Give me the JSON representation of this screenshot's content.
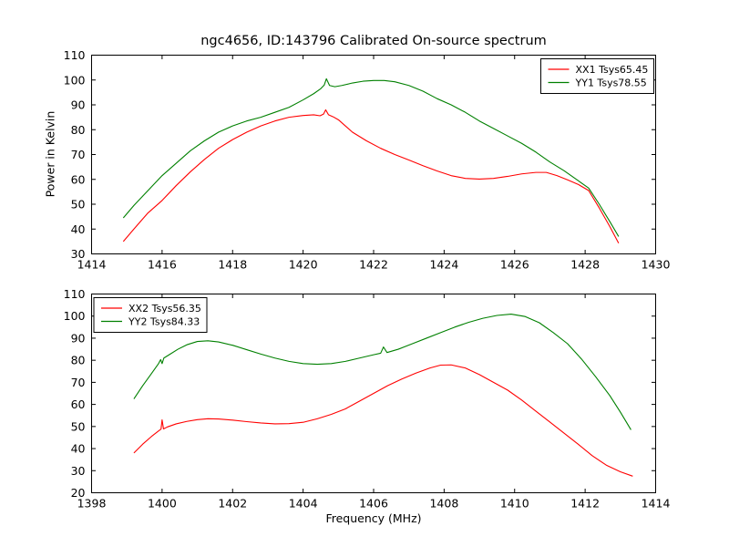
{
  "figure": {
    "title": "ngc4656, ID:143796 Calibrated On-source spectrum",
    "background": "#ffffff",
    "axes_color": "#000000"
  },
  "chart_data": [
    {
      "type": "line",
      "subplot": "top",
      "xlabel": "",
      "ylabel": "Power in Kelvin",
      "xlim": [
        1414,
        1430
      ],
      "ylim": [
        30,
        110
      ],
      "xticks": [
        1414,
        1416,
        1418,
        1420,
        1422,
        1424,
        1426,
        1428,
        1430
      ],
      "yticks": [
        30,
        40,
        50,
        60,
        70,
        80,
        90,
        100,
        110
      ],
      "grid": false,
      "legend": {
        "position": "top-right"
      },
      "series": [
        {
          "name": "XX1 Tsys65.45",
          "color": "#ff0000",
          "x": [
            1414.9,
            1415.2,
            1415.6,
            1416.0,
            1416.4,
            1416.8,
            1417.2,
            1417.6,
            1418.0,
            1418.4,
            1418.8,
            1419.2,
            1419.6,
            1420.0,
            1420.3,
            1420.48,
            1420.58,
            1420.64,
            1420.72,
            1420.85,
            1421.0,
            1421.4,
            1421.8,
            1422.2,
            1422.6,
            1423.0,
            1423.4,
            1423.8,
            1424.2,
            1424.6,
            1425.0,
            1425.4,
            1425.8,
            1426.2,
            1426.6,
            1426.9,
            1427.2,
            1427.5,
            1427.8,
            1428.1,
            1428.4,
            1428.7,
            1428.95
          ],
          "y": [
            35.0,
            40.0,
            46.5,
            51.5,
            57.5,
            63.0,
            68.0,
            72.5,
            76.0,
            79.0,
            81.5,
            83.5,
            85.0,
            85.7,
            86.0,
            85.6,
            86.3,
            88.0,
            86.0,
            85.2,
            84.0,
            79.0,
            75.5,
            72.5,
            70.0,
            67.8,
            65.5,
            63.4,
            61.5,
            60.4,
            60.1,
            60.4,
            61.2,
            62.2,
            62.8,
            62.8,
            61.5,
            59.8,
            58.0,
            55.5,
            48.5,
            41.0,
            34.3
          ]
        },
        {
          "name": "YY1 Tsys78.55",
          "color": "#008000",
          "x": [
            1414.9,
            1415.2,
            1415.6,
            1416.0,
            1416.4,
            1416.8,
            1417.2,
            1417.6,
            1418.0,
            1418.4,
            1418.8,
            1419.2,
            1419.6,
            1420.0,
            1420.3,
            1420.5,
            1420.6,
            1420.66,
            1420.75,
            1420.9,
            1421.1,
            1421.4,
            1421.7,
            1422.0,
            1422.3,
            1422.6,
            1423.0,
            1423.4,
            1423.8,
            1424.2,
            1424.6,
            1425.0,
            1425.4,
            1425.8,
            1426.2,
            1426.6,
            1427.0,
            1427.4,
            1427.8,
            1428.1,
            1428.4,
            1428.7,
            1428.95
          ],
          "y": [
            44.5,
            49.5,
            55.5,
            61.5,
            66.5,
            71.5,
            75.5,
            79.0,
            81.5,
            83.5,
            85.0,
            87.0,
            89.0,
            92.0,
            94.5,
            96.5,
            98.0,
            100.5,
            97.8,
            97.3,
            97.8,
            98.8,
            99.5,
            99.8,
            99.8,
            99.3,
            97.8,
            95.5,
            92.5,
            90.0,
            87.0,
            83.5,
            80.5,
            77.5,
            74.5,
            71.0,
            67.0,
            63.5,
            59.5,
            56.5,
            50.0,
            43.0,
            37.0
          ]
        }
      ]
    },
    {
      "type": "line",
      "subplot": "bottom",
      "xlabel": "Frequency (MHz)",
      "ylabel": "",
      "xlim": [
        1398,
        1414
      ],
      "ylim": [
        20,
        110
      ],
      "xticks": [
        1398,
        1400,
        1402,
        1404,
        1406,
        1408,
        1410,
        1412,
        1414
      ],
      "yticks": [
        20,
        30,
        40,
        50,
        60,
        70,
        80,
        90,
        100,
        110
      ],
      "grid": false,
      "legend": {
        "position": "top-left"
      },
      "series": [
        {
          "name": "XX2 Tsys56.35",
          "color": "#ff0000",
          "x": [
            1399.2,
            1399.45,
            1399.7,
            1399.9,
            1399.97,
            1400.0,
            1400.04,
            1400.15,
            1400.4,
            1400.7,
            1401.0,
            1401.3,
            1401.6,
            1402.0,
            1402.4,
            1402.8,
            1403.2,
            1403.6,
            1404.0,
            1404.4,
            1404.8,
            1405.2,
            1405.6,
            1406.0,
            1406.4,
            1406.8,
            1407.2,
            1407.6,
            1407.9,
            1408.2,
            1408.6,
            1409.0,
            1409.4,
            1409.8,
            1410.2,
            1410.6,
            1411.0,
            1411.4,
            1411.8,
            1412.2,
            1412.6,
            1413.0,
            1413.35
          ],
          "y": [
            38.0,
            42.0,
            45.5,
            48.0,
            48.8,
            53.0,
            48.9,
            49.8,
            51.2,
            52.3,
            53.1,
            53.5,
            53.4,
            52.9,
            52.2,
            51.6,
            51.2,
            51.3,
            51.9,
            53.5,
            55.5,
            58.0,
            61.5,
            65.0,
            68.5,
            71.5,
            74.2,
            76.5,
            77.8,
            77.9,
            76.5,
            73.5,
            70.0,
            66.5,
            62.0,
            57.0,
            52.0,
            47.0,
            42.0,
            36.8,
            32.5,
            29.5,
            27.5
          ]
        },
        {
          "name": "YY2 Tsys84.33",
          "color": "#008000",
          "x": [
            1399.2,
            1399.45,
            1399.7,
            1399.9,
            1399.96,
            1400.0,
            1400.05,
            1400.2,
            1400.45,
            1400.7,
            1401.0,
            1401.3,
            1401.6,
            1402.0,
            1402.4,
            1402.8,
            1403.2,
            1403.6,
            1404.0,
            1404.4,
            1404.8,
            1405.2,
            1405.6,
            1406.0,
            1406.2,
            1406.28,
            1406.38,
            1406.7,
            1407.1,
            1407.5,
            1407.9,
            1408.3,
            1408.7,
            1409.1,
            1409.5,
            1409.9,
            1410.3,
            1410.7,
            1411.1,
            1411.5,
            1411.9,
            1412.3,
            1412.7,
            1413.0,
            1413.3
          ],
          "y": [
            62.5,
            68.5,
            74.0,
            78.5,
            80.3,
            78.5,
            81.0,
            82.5,
            85.0,
            87.0,
            88.5,
            88.8,
            88.3,
            86.8,
            84.8,
            82.8,
            81.0,
            79.5,
            78.5,
            78.2,
            78.5,
            79.5,
            81.0,
            82.5,
            83.2,
            86.0,
            83.5,
            85.0,
            87.5,
            90.0,
            92.5,
            95.0,
            97.2,
            99.0,
            100.3,
            100.9,
            99.8,
            97.0,
            92.5,
            87.5,
            80.5,
            72.5,
            64.0,
            56.5,
            48.5
          ]
        }
      ]
    }
  ]
}
